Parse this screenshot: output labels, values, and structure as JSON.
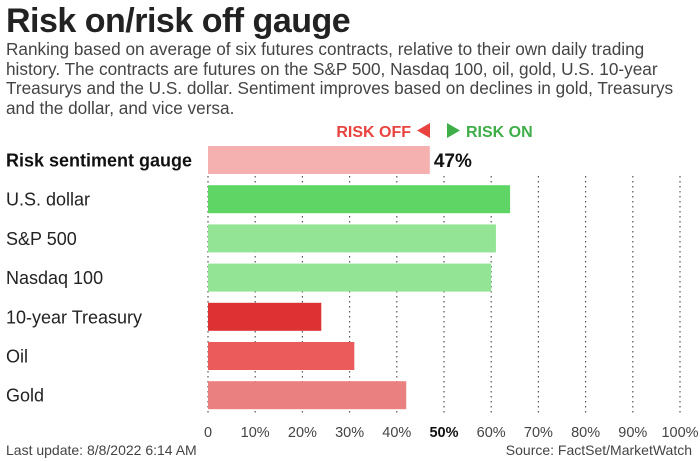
{
  "title": "Risk on/risk off gauge",
  "subtitle": "Ranking based on average of six futures contracts, relative to their own daily trading history. The contracts are futures on the S&P 500, Nasdaq 100, oil, gold, U.S. 10-year Treasurys and the U.S. dollar. Sentiment improves based on declines in gold, Treasurys and the dollar, and vice versa.",
  "legend": {
    "off_label": "RISK OFF",
    "on_label": "RISK ON",
    "off_color": "#e8433e",
    "on_color": "#3fae49"
  },
  "footer": {
    "left": "Last update: 8/8/2022 6:14 AM",
    "right": "Source: FactSet/MarketWatch"
  },
  "chart_data": {
    "type": "bar",
    "orientation": "horizontal",
    "categories": [
      "Risk sentiment gauge",
      "U.S. dollar",
      "S&P 500",
      "Nasdaq 100",
      "10-year Treasury",
      "Oil",
      "Gold"
    ],
    "values": [
      47,
      64,
      61,
      60,
      24,
      31,
      42
    ],
    "data_labels": [
      "47%",
      "",
      "",
      "",
      "",
      "",
      ""
    ],
    "colors": [
      "#f5b1b0",
      "#5ed565",
      "#93e494",
      "#93e494",
      "#dd3133",
      "#eb5b5c",
      "#ea807f"
    ],
    "bold_categories": [
      "Risk sentiment gauge"
    ],
    "tick_labels": [
      "0",
      "10%",
      "20%",
      "30%",
      "40%",
      "50%",
      "60%",
      "70%",
      "80%",
      "90%",
      "100%"
    ],
    "bold_ticks": [
      "50%"
    ],
    "xlim": [
      0,
      100
    ],
    "grid": "vertical-dotted"
  }
}
